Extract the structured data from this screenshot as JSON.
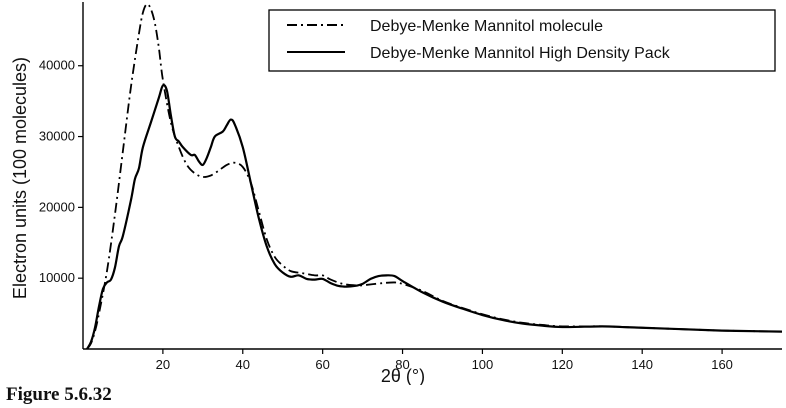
{
  "caption": "Figure 5.6.32",
  "chart_data": {
    "type": "line",
    "title": "",
    "xlabel": "2θ (°)",
    "ylabel": "Electron units (100 molecules)",
    "xlim": [
      0,
      175
    ],
    "ylim": [
      0,
      49000
    ],
    "xticks": [
      20,
      40,
      60,
      80,
      100,
      120,
      140,
      160
    ],
    "yticks": [
      10000,
      20000,
      30000,
      40000
    ],
    "grid": false,
    "legend_position": "top-right",
    "series": [
      {
        "name": "Debye-Menke Mannitol molecule",
        "style": "dashdot",
        "color": "#000000",
        "points": [
          [
            1,
            0
          ],
          [
            2,
            800
          ],
          [
            3,
            2500
          ],
          [
            4,
            5000
          ],
          [
            6,
            11000
          ],
          [
            8,
            19000
          ],
          [
            10,
            28000
          ],
          [
            12,
            37000
          ],
          [
            14,
            44500
          ],
          [
            15,
            47500
          ],
          [
            16,
            48700
          ],
          [
            17,
            48000
          ],
          [
            18,
            46000
          ],
          [
            19,
            42500
          ],
          [
            20,
            38000
          ],
          [
            22,
            32000
          ],
          [
            24,
            28500
          ],
          [
            26,
            26000
          ],
          [
            28,
            24800
          ],
          [
            30,
            24300
          ],
          [
            32,
            24500
          ],
          [
            34,
            25200
          ],
          [
            36,
            26000
          ],
          [
            38,
            26300
          ],
          [
            40,
            25700
          ],
          [
            42,
            23500
          ],
          [
            44,
            19500
          ],
          [
            46,
            15500
          ],
          [
            48,
            13000
          ],
          [
            50,
            11800
          ],
          [
            52,
            11000
          ],
          [
            55,
            10700
          ],
          [
            58,
            10400
          ],
          [
            60,
            10400
          ],
          [
            62,
            9800
          ],
          [
            65,
            9200
          ],
          [
            68,
            9000
          ],
          [
            70,
            9000
          ],
          [
            75,
            9300
          ],
          [
            78,
            9400
          ],
          [
            80,
            9200
          ],
          [
            85,
            8200
          ],
          [
            90,
            6800
          ],
          [
            95,
            5800
          ],
          [
            100,
            4900
          ],
          [
            105,
            4200
          ],
          [
            110,
            3700
          ],
          [
            115,
            3400
          ],
          [
            120,
            3200
          ],
          [
            130,
            3200
          ],
          [
            135,
            3100
          ],
          [
            140,
            3000
          ],
          [
            150,
            2800
          ],
          [
            160,
            2600
          ],
          [
            170,
            2500
          ],
          [
            175,
            2450
          ]
        ]
      },
      {
        "name": "Debye-Menke Mannitol High Density Pack",
        "style": "solid",
        "color": "#000000",
        "points": [
          [
            1,
            0
          ],
          [
            2,
            1000
          ],
          [
            3,
            3000
          ],
          [
            4,
            6000
          ],
          [
            5,
            8500
          ],
          [
            6,
            9400
          ],
          [
            7,
            9800
          ],
          [
            8,
            11500
          ],
          [
            9,
            14500
          ],
          [
            10,
            16000
          ],
          [
            12,
            21000
          ],
          [
            13,
            24000
          ],
          [
            14,
            25500
          ],
          [
            15,
            28500
          ],
          [
            17,
            32000
          ],
          [
            19,
            35500
          ],
          [
            20,
            37200
          ],
          [
            21,
            36500
          ],
          [
            22,
            33000
          ],
          [
            23,
            30000
          ],
          [
            24,
            29300
          ],
          [
            25,
            28500
          ],
          [
            27,
            27400
          ],
          [
            28,
            27400
          ],
          [
            29,
            26500
          ],
          [
            30,
            26000
          ],
          [
            31,
            27000
          ],
          [
            32,
            28500
          ],
          [
            33,
            30000
          ],
          [
            35,
            30700
          ],
          [
            36,
            31600
          ],
          [
            37,
            32400
          ],
          [
            38,
            31700
          ],
          [
            40,
            28500
          ],
          [
            42,
            23500
          ],
          [
            44,
            18500
          ],
          [
            46,
            14500
          ],
          [
            48,
            12000
          ],
          [
            50,
            10800
          ],
          [
            52,
            10200
          ],
          [
            54,
            10400
          ],
          [
            56,
            9900
          ],
          [
            58,
            9800
          ],
          [
            60,
            9900
          ],
          [
            62,
            9300
          ],
          [
            64,
            8900
          ],
          [
            66,
            8800
          ],
          [
            68,
            8900
          ],
          [
            70,
            9200
          ],
          [
            72,
            9900
          ],
          [
            74,
            10300
          ],
          [
            76,
            10400
          ],
          [
            78,
            10300
          ],
          [
            80,
            9600
          ],
          [
            85,
            8000
          ],
          [
            90,
            6700
          ],
          [
            95,
            5700
          ],
          [
            100,
            4800
          ],
          [
            105,
            4100
          ],
          [
            110,
            3600
          ],
          [
            115,
            3300
          ],
          [
            120,
            3100
          ],
          [
            130,
            3200
          ],
          [
            135,
            3100
          ],
          [
            140,
            3000
          ],
          [
            150,
            2800
          ],
          [
            160,
            2600
          ],
          [
            170,
            2500
          ],
          [
            175,
            2450
          ]
        ]
      }
    ]
  }
}
